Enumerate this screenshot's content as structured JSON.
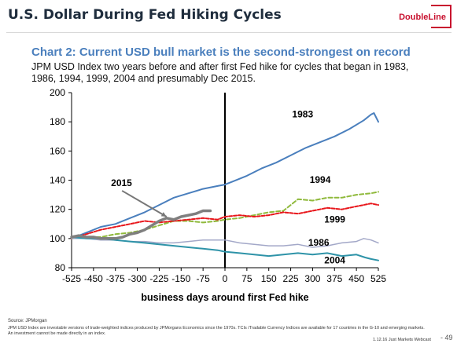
{
  "slide": {
    "title": "U.S. Dollar During Fed Hiking Cycles",
    "logo_text": "DoubleLine"
  },
  "chart_data": {
    "type": "line",
    "title": "Chart 2: Current USD bull market is the second-strongest on record",
    "subtitle": "JPM USD Index two years before and after first Fed hike for cycles that began in 1983, 1986, 1994, 1999, 2004 and presumably Dec 2015.",
    "xlabel": "business days around first Fed hike",
    "ylabel": "",
    "xlim": [
      -525,
      525
    ],
    "ylim": [
      80,
      200
    ],
    "xticks": [
      -525,
      -450,
      -375,
      -300,
      -225,
      -150,
      -75,
      0,
      75,
      150,
      225,
      300,
      375,
      450,
      525
    ],
    "xtick_labels": [
      "-525",
      "-450",
      "-375",
      "-300",
      "-225",
      "-150",
      "-75",
      "0",
      "75",
      "150",
      "225",
      "300",
      "375",
      "450",
      "525"
    ],
    "yticks": [
      80,
      100,
      120,
      140,
      160,
      180,
      200
    ],
    "ytick_labels": [
      "80",
      "100",
      "120",
      "140",
      "160",
      "180",
      "200"
    ],
    "grid": false,
    "vline_x": 0,
    "annotations": [
      {
        "text": "2015",
        "x": -390,
        "y": 136,
        "arrow_to": [
          -200,
          115
        ]
      }
    ],
    "series": [
      {
        "name": "1983",
        "color": "#4a7fbd",
        "dash": "",
        "width": 2,
        "label_at": [
          230,
          183
        ],
        "x": [
          -525,
          -475,
          -425,
          -375,
          -325,
          -275,
          -225,
          -175,
          -125,
          -75,
          -25,
          0,
          25,
          75,
          125,
          175,
          225,
          275,
          325,
          375,
          425,
          475,
          500,
          510,
          525
        ],
        "y": [
          100,
          104,
          108,
          110,
          114,
          118,
          123,
          128,
          131,
          134,
          136,
          137,
          139,
          143,
          148,
          152,
          157,
          162,
          166,
          170,
          175,
          181,
          185,
          186,
          180
        ]
      },
      {
        "name": "1994",
        "color": "#8fb93b",
        "dash": "5,3",
        "width": 2,
        "label_at": [
          290,
          138
        ],
        "x": [
          -525,
          -475,
          -425,
          -375,
          -325,
          -275,
          -225,
          -175,
          -125,
          -75,
          -25,
          0,
          50,
          100,
          150,
          200,
          250,
          300,
          350,
          400,
          450,
          500,
          525
        ],
        "y": [
          100,
          101,
          101,
          103,
          104,
          106,
          109,
          112,
          112,
          111,
          112,
          113,
          114,
          116,
          118,
          119,
          127,
          126,
          128,
          128,
          130,
          131,
          132
        ]
      },
      {
        "name": "1999",
        "color": "#e8161b",
        "dash": "4,2",
        "width": 2,
        "label_at": [
          340,
          111
        ],
        "x": [
          -525,
          -475,
          -425,
          -375,
          -325,
          -275,
          -225,
          -175,
          -125,
          -75,
          -25,
          0,
          50,
          100,
          150,
          200,
          250,
          300,
          350,
          400,
          450,
          500,
          525
        ],
        "y": [
          100,
          103,
          106,
          108,
          110,
          112,
          111,
          112,
          113,
          114,
          113,
          115,
          116,
          115,
          116,
          118,
          117,
          119,
          121,
          120,
          122,
          124,
          123
        ]
      },
      {
        "name": "1986",
        "color": "#a3a8c8",
        "dash": "",
        "width": 1.5,
        "label_at": [
          285,
          95
        ],
        "x": [
          -525,
          -475,
          -425,
          -375,
          -325,
          -275,
          -225,
          -175,
          -125,
          -75,
          -25,
          0,
          50,
          100,
          150,
          200,
          250,
          300,
          350,
          400,
          450,
          475,
          500,
          525
        ],
        "y": [
          100,
          100,
          99,
          99,
          98,
          98,
          97,
          97,
          98,
          99,
          99,
          99,
          97,
          96,
          95,
          95,
          96,
          94,
          95,
          97,
          98,
          100,
          99,
          97
        ]
      },
      {
        "name": "2004",
        "color": "#2e93a8",
        "dash": "",
        "width": 2,
        "label_at": [
          340,
          83
        ],
        "x": [
          -525,
          -475,
          -425,
          -375,
          -325,
          -275,
          -225,
          -175,
          -125,
          -75,
          -25,
          0,
          50,
          100,
          150,
          200,
          250,
          300,
          350,
          400,
          450,
          480,
          500,
          525
        ],
        "y": [
          101,
          100,
          100,
          99,
          98,
          97,
          96,
          95,
          94,
          93,
          92,
          91,
          90,
          89,
          88,
          89,
          90,
          89,
          90,
          88,
          89,
          87,
          86,
          85
        ]
      },
      {
        "name": "2015",
        "color": "#7f7f7f",
        "dash": "",
        "width": 3.5,
        "label_at": null,
        "x": [
          -525,
          -500,
          -475,
          -450,
          -425,
          -400,
          -375,
          -350,
          -325,
          -300,
          -275,
          -250,
          -225,
          -200,
          -175,
          -150,
          -125,
          -100,
          -75,
          -50
        ],
        "y": [
          101,
          102,
          101,
          101,
          100,
          100,
          100,
          101,
          103,
          104,
          106,
          109,
          112,
          114,
          113,
          115,
          116,
          117,
          119,
          119
        ]
      }
    ]
  },
  "footer": {
    "source": "Source: JPMorgan",
    "note": "JPM USD Index are investable versions of trade-weighted indices produced by JPMorgans Economics since the 1970s. TCIs /Tradable Currency Indices are available for 17 countries in the G-10 and emerging markets.  An investment cannot be made directly in an index.",
    "date": "1.12.16 Just Markets Webcast",
    "page": "- 49"
  }
}
